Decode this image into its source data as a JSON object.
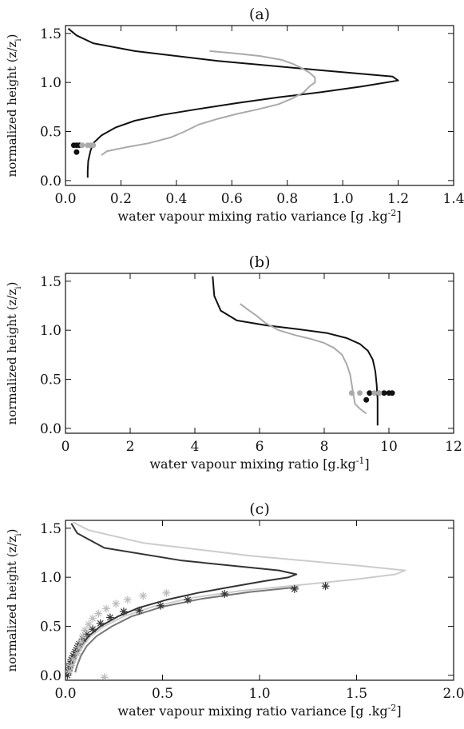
{
  "chart_data": [
    {
      "type": "line",
      "title": "(a)",
      "xlabel": "water vapour mixing ratio variance [g .kg",
      "xlabel_sup": "-2",
      "xlabel_end": "]",
      "ylabel": "normalized height (z/z",
      "ylabel_sub": "i",
      "ylabel_end": ")",
      "xlim": [
        0,
        1.4
      ],
      "ylim": [
        -0.05,
        1.58
      ],
      "xticks": [
        0.0,
        0.2,
        0.4,
        0.6,
        0.8,
        1.0,
        1.2,
        1.4
      ],
      "xtick_labels": [
        "0.0",
        "0.2",
        "0.4",
        "0.6",
        "0.8",
        "1.0",
        "1.2",
        "1.4"
      ],
      "yticks": [
        0.0,
        0.5,
        1.0,
        1.5
      ],
      "ytick_labels": [
        "0.0",
        "0.5",
        "1.0",
        "1.5"
      ],
      "series": [
        {
          "color": "#111111",
          "x": [
            0.08,
            0.08,
            0.082,
            0.09,
            0.1,
            0.13,
            0.18,
            0.25,
            0.35,
            0.48,
            0.62,
            0.77,
            0.92,
            1.07,
            1.2,
            1.18,
            0.9,
            0.55,
            0.25,
            0.1,
            0.04,
            0.01
          ],
          "y": [
            0.03,
            0.1,
            0.2,
            0.3,
            0.38,
            0.46,
            0.54,
            0.61,
            0.67,
            0.73,
            0.79,
            0.85,
            0.9,
            0.96,
            1.02,
            1.06,
            1.13,
            1.22,
            1.32,
            1.4,
            1.48,
            1.55
          ]
        },
        {
          "color": "#aaaaaa",
          "x": [
            0.13,
            0.15,
            0.22,
            0.3,
            0.38,
            0.43,
            0.48,
            0.55,
            0.62,
            0.7,
            0.77,
            0.82,
            0.86,
            0.88,
            0.9,
            0.9,
            0.88,
            0.85,
            0.82,
            0.78,
            0.7,
            0.6,
            0.52
          ],
          "y": [
            0.26,
            0.3,
            0.34,
            0.38,
            0.44,
            0.5,
            0.57,
            0.63,
            0.68,
            0.73,
            0.78,
            0.84,
            0.9,
            0.96,
            1.0,
            1.05,
            1.1,
            1.15,
            1.19,
            1.23,
            1.27,
            1.3,
            1.32
          ]
        }
      ],
      "point_series": [
        {
          "color": "#111111",
          "x": [
            0.03,
            0.04,
            0.05,
            0.04
          ],
          "y": [
            0.36,
            0.36,
            0.36,
            0.29
          ]
        },
        {
          "color": "#aaaaaa",
          "x": [
            0.06,
            0.08,
            0.09,
            0.1
          ],
          "y": [
            0.36,
            0.36,
            0.36,
            0.36
          ]
        }
      ]
    },
    {
      "type": "line",
      "title": "(b)",
      "xlabel": "water vapour mixing ratio [g.kg",
      "xlabel_sup": "-1",
      "xlabel_end": "]",
      "ylabel": "normalized height (z/z",
      "ylabel_sub": "i",
      "ylabel_end": ")",
      "xlim": [
        0,
        12
      ],
      "ylim": [
        -0.05,
        1.58
      ],
      "xticks": [
        0,
        2,
        4,
        6,
        8,
        10,
        12
      ],
      "xtick_labels": [
        "0",
        "2",
        "4",
        "6",
        "8",
        "10",
        "12"
      ],
      "yticks": [
        0.0,
        0.5,
        1.0,
        1.5
      ],
      "ytick_labels": [
        "0.0",
        "0.5",
        "1.0",
        "1.5"
      ],
      "series": [
        {
          "color": "#111111",
          "x": [
            9.65,
            9.65,
            9.65,
            9.62,
            9.58,
            9.5,
            9.35,
            9.1,
            8.7,
            8.1,
            7.2,
            6.2,
            5.3,
            4.8,
            4.6,
            4.55
          ],
          "y": [
            0.03,
            0.15,
            0.3,
            0.45,
            0.58,
            0.7,
            0.79,
            0.86,
            0.92,
            0.97,
            1.01,
            1.05,
            1.1,
            1.2,
            1.35,
            1.55
          ]
        },
        {
          "color": "#aaaaaa",
          "x": [
            9.3,
            9.1,
            8.95,
            8.9,
            8.85,
            8.8,
            8.7,
            8.55,
            8.3,
            8.0,
            7.6,
            7.1,
            6.6,
            6.2,
            5.9,
            5.6,
            5.4
          ],
          "y": [
            0.15,
            0.2,
            0.25,
            0.35,
            0.45,
            0.55,
            0.65,
            0.75,
            0.82,
            0.87,
            0.91,
            0.95,
            1.0,
            1.07,
            1.15,
            1.22,
            1.27
          ]
        }
      ],
      "point_series": [
        {
          "color": "#111111",
          "x": [
            9.4,
            9.3,
            9.85,
            10.0,
            10.1
          ],
          "y": [
            0.36,
            0.29,
            0.36,
            0.36,
            0.36
          ]
        },
        {
          "color": "#aaaaaa",
          "x": [
            8.85,
            9.1,
            9.55,
            9.7
          ],
          "y": [
            0.36,
            0.36,
            0.36,
            0.36
          ]
        }
      ]
    },
    {
      "type": "line",
      "title": "(c)",
      "xlabel": "water vapour mixing ratio variance [g .kg",
      "xlabel_sup": "-2",
      "xlabel_end": "]",
      "ylabel": "normalized height (z/z",
      "ylabel_sub": "i",
      "ylabel_end": ")",
      "xlim": [
        0,
        2.0
      ],
      "ylim": [
        -0.05,
        1.58
      ],
      "xticks": [
        0.0,
        0.5,
        1.0,
        1.5,
        2.0
      ],
      "xtick_labels": [
        "0.0",
        "0.5",
        "1.0",
        "1.5",
        "2.0"
      ],
      "yticks": [
        0.0,
        0.5,
        1.0,
        1.5
      ],
      "ytick_labels": [
        "0.0",
        "0.5",
        "1.0",
        "1.5"
      ],
      "series": [
        {
          "color": "#333333",
          "x": [
            0.02,
            0.03,
            0.05,
            0.08,
            0.12,
            0.18,
            0.27,
            0.38,
            0.52,
            0.68,
            0.85,
            1.02,
            1.15,
            1.19,
            1.1,
            0.6,
            0.2,
            0.06,
            0.03
          ],
          "y": [
            0.03,
            0.1,
            0.2,
            0.3,
            0.4,
            0.5,
            0.6,
            0.69,
            0.77,
            0.84,
            0.9,
            0.96,
            1.0,
            1.03,
            1.07,
            1.17,
            1.3,
            1.45,
            1.55
          ]
        },
        {
          "color": "#cccccc",
          "x": [
            0.03,
            0.04,
            0.06,
            0.09,
            0.13,
            0.2,
            0.3,
            0.45,
            0.65,
            0.9,
            1.2,
            1.5,
            1.7,
            1.75,
            1.5,
            0.95,
            0.4,
            0.12,
            0.04
          ],
          "y": [
            0.03,
            0.1,
            0.2,
            0.3,
            0.4,
            0.5,
            0.6,
            0.7,
            0.79,
            0.86,
            0.92,
            0.98,
            1.03,
            1.07,
            1.12,
            1.22,
            1.35,
            1.48,
            1.56
          ]
        },
        {
          "color": "#777777",
          "x": [
            0.05,
            0.06,
            0.08,
            0.11,
            0.16,
            0.24,
            0.34,
            0.5,
            0.7,
            0.95,
            1.2
          ],
          "y": [
            0.03,
            0.1,
            0.2,
            0.3,
            0.4,
            0.5,
            0.6,
            0.7,
            0.78,
            0.85,
            0.9
          ]
        }
      ],
      "point_series": [
        {
          "color": "#333333",
          "marker": "asterisk",
          "x": [
            0.01,
            0.015,
            0.02,
            0.025,
            0.03,
            0.04,
            0.05,
            0.06,
            0.07,
            0.09,
            0.11,
            0.14,
            0.18,
            0.23,
            0.3,
            0.38,
            0.49,
            0.63,
            0.82,
            1.18,
            1.34
          ],
          "y": [
            0.0,
            0.04,
            0.08,
            0.12,
            0.16,
            0.2,
            0.24,
            0.28,
            0.32,
            0.37,
            0.42,
            0.47,
            0.53,
            0.59,
            0.65,
            0.66,
            0.71,
            0.77,
            0.83,
            0.88,
            0.91
          ]
        },
        {
          "color": "#bbbbbb",
          "marker": "asterisk",
          "x": [
            0.02,
            0.03,
            0.04,
            0.06,
            0.07,
            0.08,
            0.09,
            0.1,
            0.12,
            0.14,
            0.17,
            0.21,
            0.26,
            0.32,
            0.4,
            0.52,
            0.2
          ],
          "y": [
            0.04,
            0.1,
            0.16,
            0.22,
            0.28,
            0.34,
            0.4,
            0.46,
            0.52,
            0.58,
            0.63,
            0.68,
            0.73,
            0.77,
            0.81,
            0.84,
            -0.02
          ]
        }
      ]
    }
  ]
}
